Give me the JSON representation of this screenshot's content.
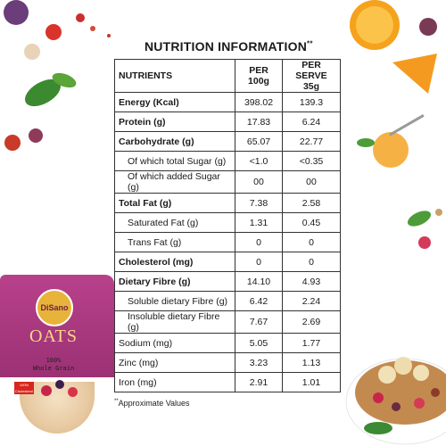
{
  "title": "NUTRITION INFORMATION",
  "title_mark": "**",
  "headers": {
    "col1": "NUTRIENTS",
    "col2_line1": "PER",
    "col2_line2": "100g",
    "col3_line1": "PER SERVE",
    "col3_line2": "35g"
  },
  "rows": [
    {
      "name": "Energy (Kcal)",
      "per100": "398.02",
      "serve": "139.3",
      "bold": true,
      "sub": false
    },
    {
      "name": "Protein (g)",
      "per100": "17.83",
      "serve": "6.24",
      "bold": true,
      "sub": false
    },
    {
      "name": "Carbohydrate (g)",
      "per100": "65.07",
      "serve": "22.77",
      "bold": true,
      "sub": false
    },
    {
      "name": "Of which total Sugar (g)",
      "per100": "<1.0",
      "serve": "<0.35",
      "bold": false,
      "sub": true
    },
    {
      "name": "Of which added Sugar (g)",
      "per100": "00",
      "serve": "00",
      "bold": false,
      "sub": true
    },
    {
      "name": "Total Fat (g)",
      "per100": "7.38",
      "serve": "2.58",
      "bold": true,
      "sub": false
    },
    {
      "name": "Saturated Fat (g)",
      "per100": "1.31",
      "serve": "0.45",
      "bold": false,
      "sub": true
    },
    {
      "name": "Trans Fat (g)",
      "per100": "0",
      "serve": "0",
      "bold": false,
      "sub": true
    },
    {
      "name": "Cholesterol (mg)",
      "per100": "0",
      "serve": "0",
      "bold": true,
      "sub": false
    },
    {
      "name": "Dietary Fibre (g)",
      "per100": "14.10",
      "serve": "4.93",
      "bold": true,
      "sub": false
    },
    {
      "name": "Soluble dietary Fibre (g)",
      "per100": "6.42",
      "serve": "2.24",
      "bold": false,
      "sub": true
    },
    {
      "name": "Insoluble dietary Fibre (g)",
      "per100": "7.67",
      "serve": "2.69",
      "bold": false,
      "sub": true
    },
    {
      "name": "Sodium (mg)",
      "per100": "5.05",
      "serve": "1.77",
      "bold": false,
      "sub": false
    },
    {
      "name": "Zinc (mg)",
      "per100": "3.23",
      "serve": "1.13",
      "bold": false,
      "sub": false
    },
    {
      "name": "Iron (mg)",
      "per100": "2.91",
      "serve": "1.01",
      "bold": false,
      "sub": false
    }
  ],
  "footnote_mark": "**",
  "footnote": "Approximate Values",
  "package": {
    "brand": "DiSano",
    "product": "OATS",
    "line1": "100%",
    "line2": "Whole Grain",
    "badge": "100% Cholesterol"
  }
}
